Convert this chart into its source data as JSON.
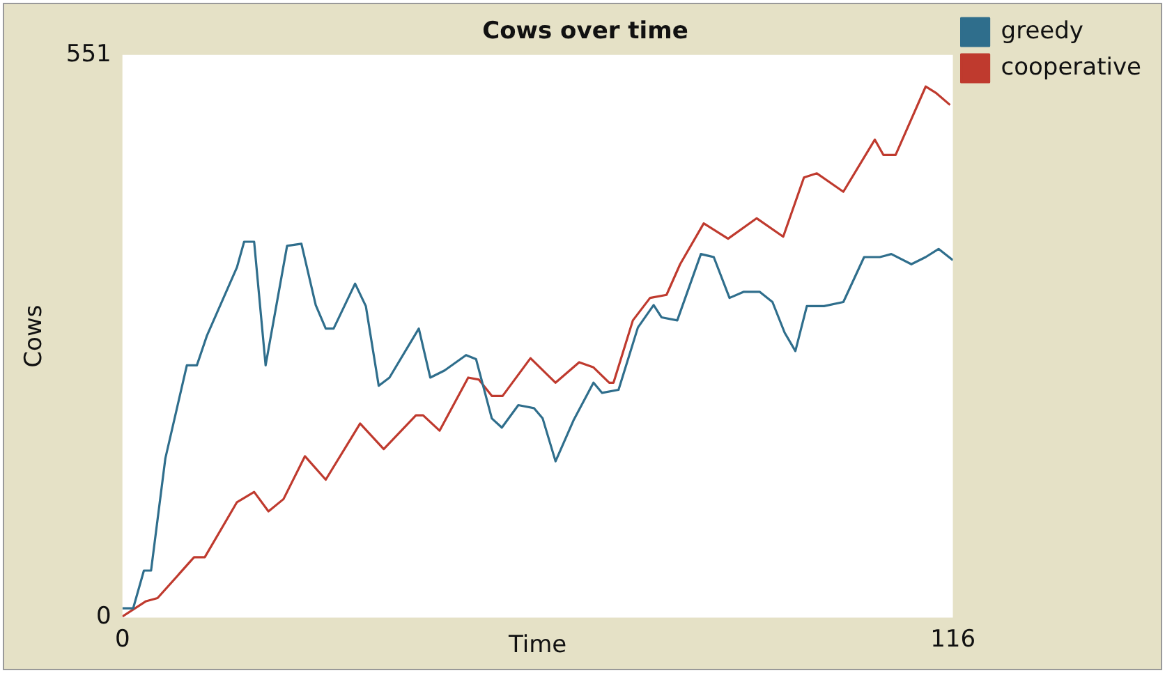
{
  "chart_data": {
    "type": "line",
    "title": "Cows over time",
    "xlabel": "Time",
    "ylabel": "Cows",
    "xlim": [
      0,
      116
    ],
    "ylim": [
      0,
      551
    ],
    "xticks": [
      0,
      116
    ],
    "yticks": [
      0,
      551
    ],
    "grid": false,
    "legend": "top right",
    "marker": "none",
    "line_style": "solid",
    "series": [
      {
        "name": "greedy",
        "color": "#2f6e8c",
        "x": [
          0,
          1.5,
          3,
          4,
          6,
          9,
          10.4,
          11.8,
          16,
          17,
          18.4,
          20,
          23,
          25,
          27,
          28.4,
          29.5,
          32.5,
          34,
          35.8,
          37.3,
          41.4,
          43,
          45,
          48,
          49.4,
          51.6,
          53,
          55.3,
          57.5,
          58.7,
          60.5,
          63,
          65.8,
          67,
          69.3,
          72,
          74.2,
          75.3,
          77.5,
          80.8,
          82.6,
          84.8,
          86.8,
          89,
          90.8,
          92.5,
          94,
          95.6,
          98,
          100.7,
          103.6,
          105.8,
          107.4,
          110.2,
          112.2,
          114,
          116
        ],
        "values": [
          9,
          9,
          46,
          46,
          156,
          247,
          247,
          276,
          343,
          368,
          368,
          247,
          364,
          366,
          306,
          283,
          283,
          327,
          305,
          227,
          235,
          283,
          235,
          242,
          257,
          253,
          195,
          186,
          208,
          205,
          195,
          153,
          193,
          230,
          220,
          223,
          284,
          306,
          294,
          291,
          356,
          353,
          313,
          319,
          319,
          309,
          279,
          261,
          305,
          305,
          309,
          353,
          353,
          356,
          346,
          353,
          361,
          350
        ]
      },
      {
        "name": "cooperative",
        "color": "#bf3a2e",
        "x": [
          0,
          3.3,
          4.9,
          10,
          11.5,
          16,
          18.4,
          20.4,
          22.5,
          25.5,
          28.4,
          33.2,
          36.5,
          41,
          42,
          44.3,
          48.3,
          49.8,
          51.6,
          53.1,
          57,
          60.5,
          63.8,
          65.8,
          68,
          68.6,
          71.3,
          73.7,
          76,
          77.9,
          81.2,
          84.6,
          88.6,
          92.3,
          95.2,
          97,
          100.7,
          105.1,
          106.3,
          108,
          112.2,
          113.6,
          115.6
        ],
        "values": [
          1,
          16,
          19,
          59,
          59,
          113,
          123,
          104,
          116,
          158,
          135,
          190,
          165,
          198,
          198,
          183,
          235,
          233,
          217,
          217,
          254,
          230,
          250,
          245,
          230,
          230,
          291,
          313,
          316,
          346,
          386,
          371,
          391,
          373,
          431,
          435,
          417,
          468,
          453,
          453,
          520,
          514,
          502
        ]
      }
    ]
  }
}
